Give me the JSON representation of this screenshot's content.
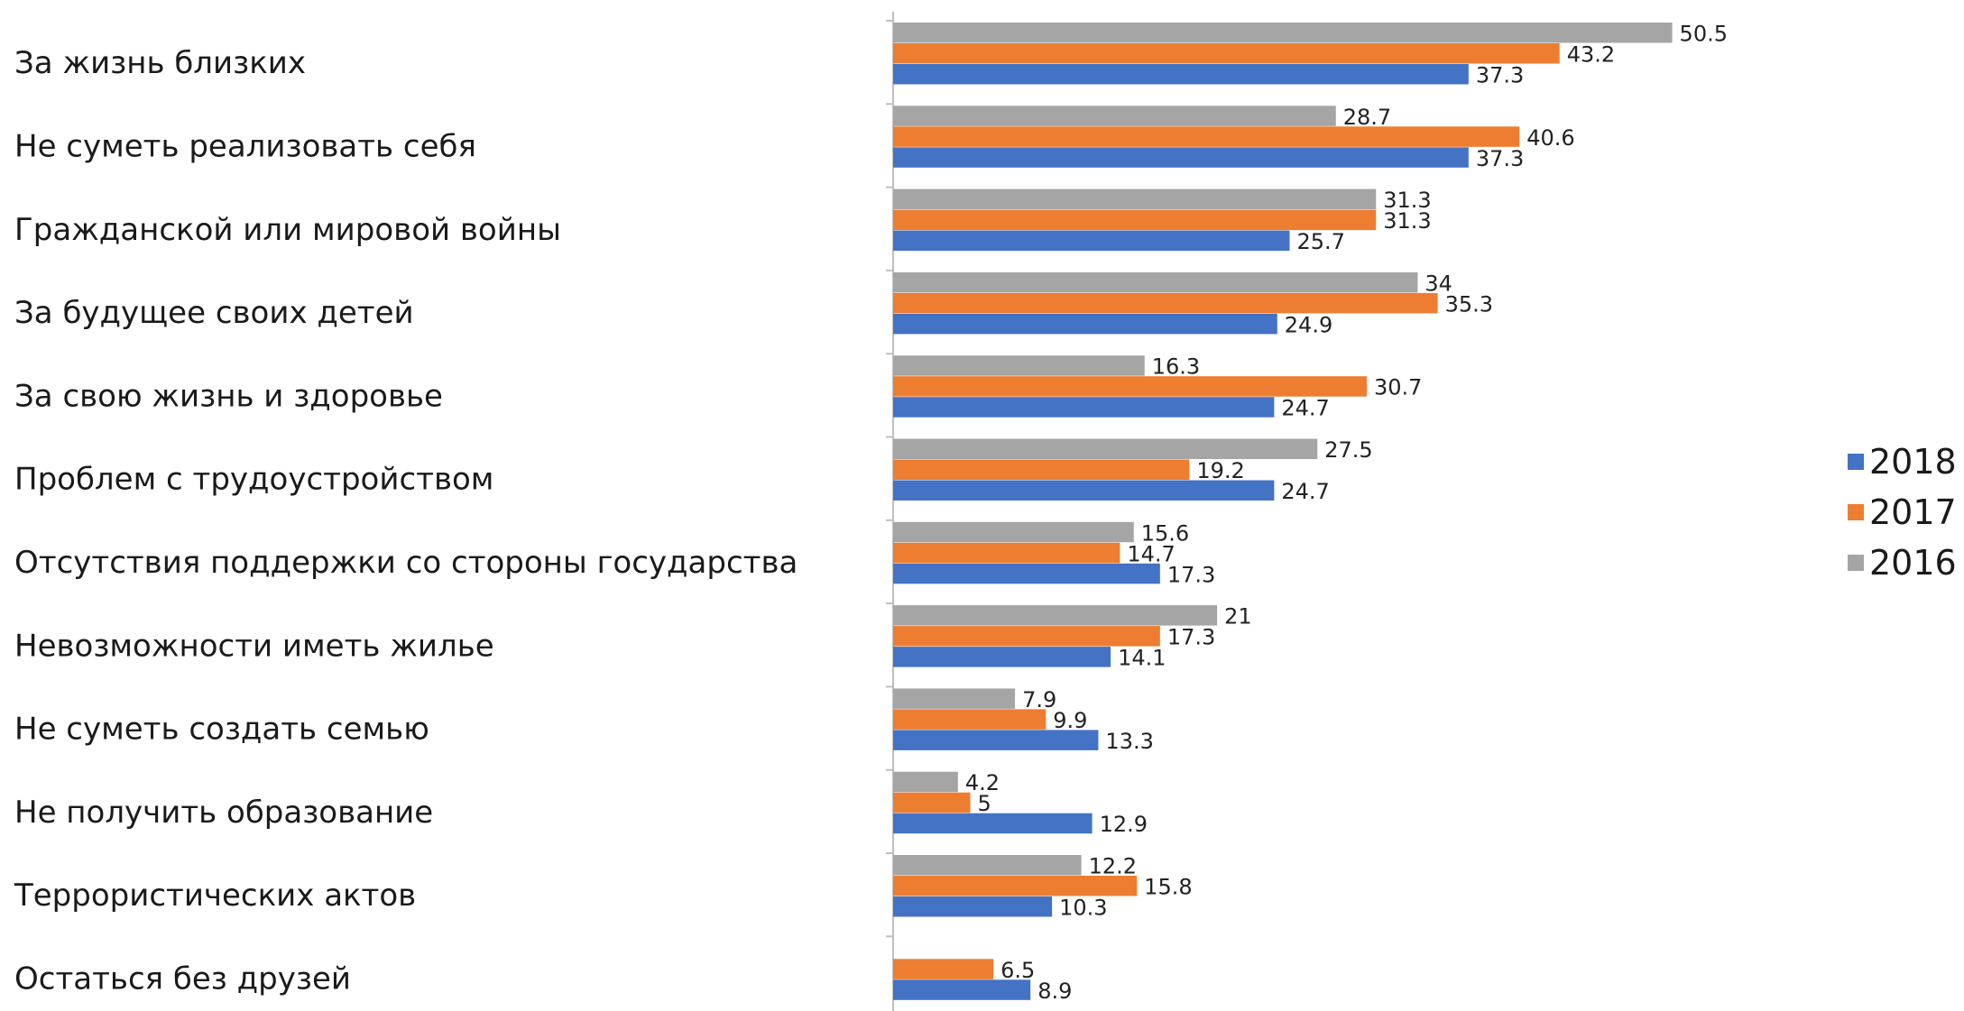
{
  "chart_data": {
    "type": "bar",
    "orientation": "horizontal",
    "categories": [
      "За жизнь близких",
      "Не суметь реализовать себя",
      "Гражданской или мировой войны",
      "За будущее своих детей",
      "За свою жизнь и здоровье",
      "Проблем с трудоустройством",
      "Отсутствия поддержки со стороны государства",
      "Невозможности иметь жилье",
      "Не суметь создать семью",
      "Не получить образование",
      "Террористических актов",
      "Остаться без друзей"
    ],
    "series": [
      {
        "name": "2016",
        "color": "#a5a5a5",
        "values": [
          50.5,
          28.7,
          31.3,
          34,
          16.3,
          27.5,
          15.6,
          21,
          7.9,
          4.2,
          12.2,
          null
        ]
      },
      {
        "name": "2017",
        "color": "#ed7d31",
        "values": [
          43.2,
          40.6,
          31.3,
          35.3,
          30.7,
          19.2,
          14.7,
          17.3,
          9.9,
          5,
          15.8,
          6.5
        ]
      },
      {
        "name": "2018",
        "color": "#4472c4",
        "values": [
          37.3,
          37.3,
          25.7,
          24.9,
          24.7,
          24.7,
          17.3,
          14.1,
          13.3,
          12.9,
          10.3,
          8.9
        ]
      }
    ],
    "legend_order": [
      "2018",
      "2017",
      "2016"
    ],
    "legend_position": "right",
    "xlim": [
      0,
      55
    ],
    "grid": false,
    "title": "",
    "xlabel": "",
    "ylabel": ""
  }
}
